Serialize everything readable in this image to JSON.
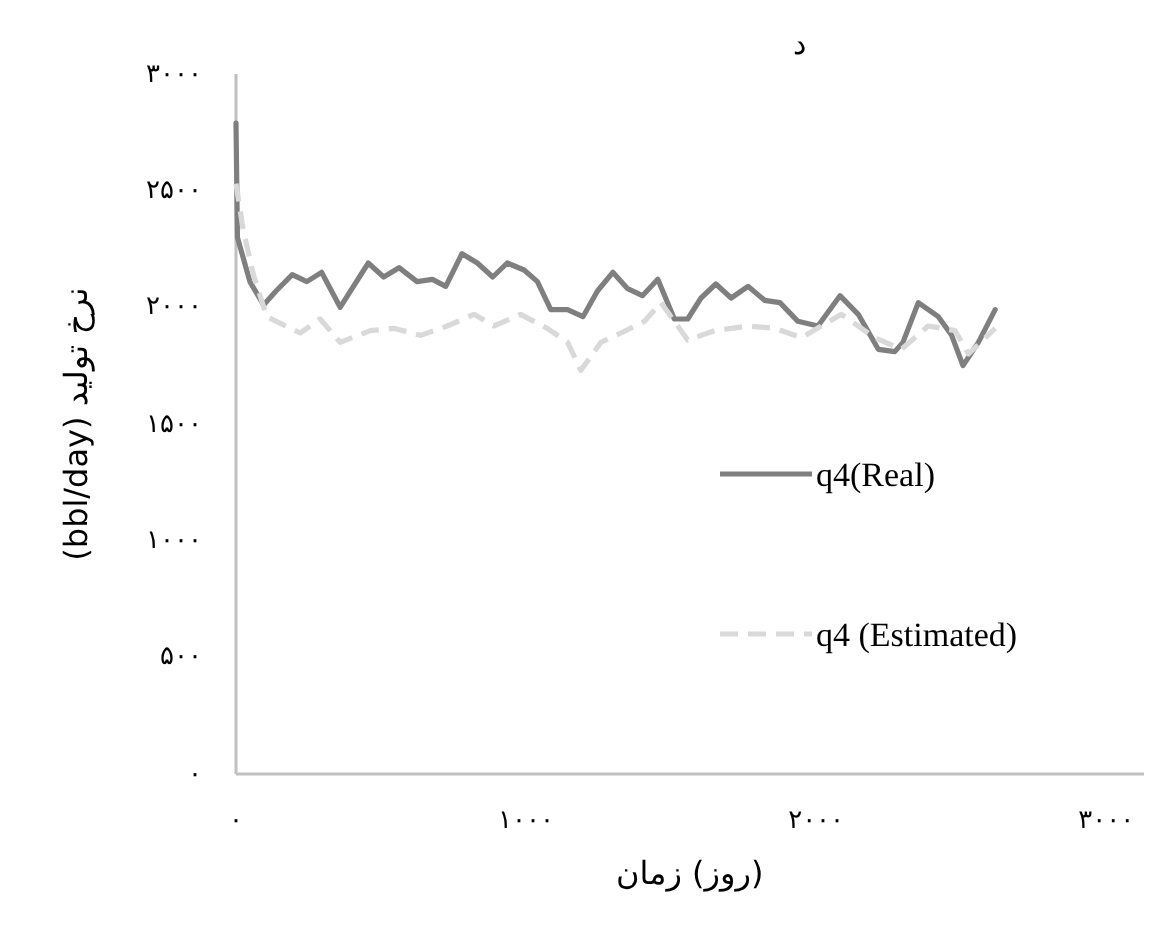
{
  "chart_data": {
    "type": "line",
    "xlabel": "زمان (روز)",
    "ylabel": "نرخ تولید (bbl/day)",
    "annotations": [
      "د"
    ],
    "xlim": [
      0,
      3130
    ],
    "ylim": [
      0,
      3000
    ],
    "xticks": [
      {
        "value": 0,
        "label": "۰"
      },
      {
        "value": 1000,
        "label": "۱۰۰۰"
      },
      {
        "value": 2000,
        "label": "۲۰۰۰"
      },
      {
        "value": 3000,
        "label": "۳۰۰۰"
      }
    ],
    "yticks": [
      {
        "value": 0,
        "label": "۰"
      },
      {
        "value": 500,
        "label": "۵۰۰"
      },
      {
        "value": 1000,
        "label": "۱۰۰۰"
      },
      {
        "value": 1500,
        "label": "۱۵۰۰"
      },
      {
        "value": 2000,
        "label": "۲۰۰۰"
      },
      {
        "value": 2500,
        "label": "۲۵۰۰"
      },
      {
        "value": 3000,
        "label": "۳۰۰۰"
      }
    ],
    "legend": "right",
    "grid": false,
    "marker": "none",
    "series": [
      {
        "name": "q4(Real)",
        "color": "#7f7f7f",
        "line_style": "solid",
        "x": [
          0,
          5,
          48,
          95,
          138,
          194,
          244,
          295,
          359,
          456,
          509,
          562,
          624,
          677,
          723,
          779,
          832,
          885,
          935,
          993,
          1039,
          1085,
          1143,
          1196,
          1246,
          1299,
          1350,
          1401,
          1454,
          1511,
          1557,
          1603,
          1654,
          1707,
          1765,
          1822,
          1875,
          1937,
          2006,
          2082,
          2145,
          2214,
          2271,
          2299,
          2352,
          2421,
          2467,
          2506,
          2559,
          2617
        ],
        "values": [
          2790,
          2300,
          2110,
          2010,
          2070,
          2140,
          2110,
          2150,
          2000,
          2190,
          2130,
          2170,
          2110,
          2120,
          2090,
          2230,
          2190,
          2130,
          2190,
          2160,
          2110,
          1990,
          1990,
          1960,
          2070,
          2150,
          2080,
          2050,
          2120,
          1950,
          1950,
          2040,
          2100,
          2040,
          2090,
          2030,
          2020,
          1940,
          1920,
          2050,
          1970,
          1820,
          1810,
          1850,
          2020,
          1960,
          1880,
          1750,
          1850,
          1990
        ]
      },
      {
        "name": "q4 (Estimated)",
        "color": "#d9d9d9",
        "line_style": "dashed",
        "x": [
          0,
          25,
          60,
          106,
          221,
          290,
          359,
          463,
          544,
          636,
          728,
          820,
          889,
          981,
          1073,
          1143,
          1189,
          1258,
          1327,
          1408,
          1465,
          1557,
          1650,
          1765,
          1857,
          1949,
          2087,
          2202,
          2294,
          2386,
          2479,
          2525,
          2617
        ],
        "values": [
          2530,
          2330,
          2140,
          1960,
          1890,
          1950,
          1850,
          1900,
          1910,
          1880,
          1920,
          1970,
          1920,
          1970,
          1910,
          1850,
          1730,
          1850,
          1890,
          1940,
          2020,
          1860,
          1900,
          1920,
          1910,
          1870,
          1970,
          1870,
          1820,
          1920,
          1900,
          1800,
          1910
        ]
      }
    ]
  }
}
